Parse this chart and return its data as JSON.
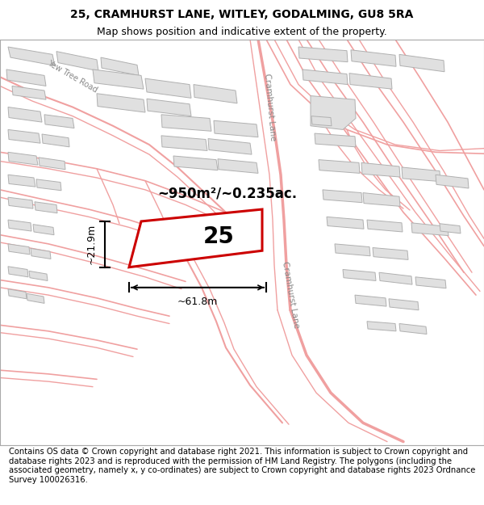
{
  "title_line1": "25, CRAMHURST LANE, WITLEY, GODALMING, GU8 5RA",
  "title_line2": "Map shows position and indicative extent of the property.",
  "footer_text": "Contains OS data © Crown copyright and database right 2021. This information is subject to Crown copyright and database rights 2023 and is reproduced with the permission of HM Land Registry. The polygons (including the associated geometry, namely x, y co-ordinates) are subject to Crown copyright and database rights 2023 Ordnance Survey 100026316.",
  "map_bg": "#ffffff",
  "road_color": "#f0a0a0",
  "building_fill": "#e0e0e0",
  "building_edge": "#b0b0b0",
  "highlight_fill": "#ffffff",
  "highlight_edge": "#cc0000",
  "highlight_label": "25",
  "area_text": "~950m²/~0.235ac.",
  "dim_width": "~61.8m",
  "dim_height": "~21.9m",
  "title_fontsize": 10,
  "subtitle_fontsize": 9,
  "footer_fontsize": 7.2,
  "road_lw": 1.2
}
